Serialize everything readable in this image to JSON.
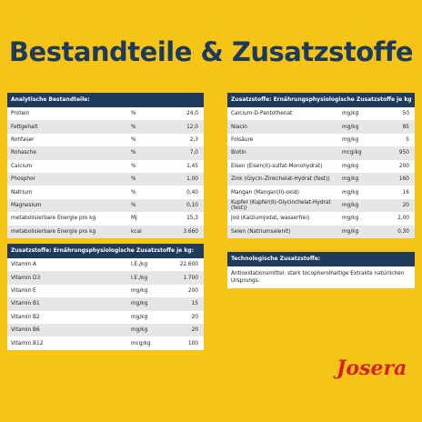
{
  "header": {
    "title": "Bestandteile & Zusatzstoffe"
  },
  "tables": [
    {
      "title": "Analytische Bestandteile:",
      "rows": [
        [
          "Protein",
          "%",
          "24,0"
        ],
        [
          "Fettgehalt",
          "%",
          "12,0"
        ],
        [
          "Rohfaser",
          "%",
          "2,3"
        ],
        [
          "Rohasche",
          "%",
          "7,0"
        ],
        [
          "Calcium",
          "%",
          "1,45"
        ],
        [
          "Phosphor",
          "%",
          "1,00"
        ],
        [
          "Natrium",
          "%",
          "0,40"
        ],
        [
          "Magnesium",
          "%",
          "0,10"
        ],
        [
          "metabolisierbare Energie pro kg",
          "MJ",
          "15,3"
        ],
        [
          "metabolisierbare Energie pro kg",
          "kcal",
          "3.660"
        ]
      ]
    },
    {
      "title": "Zusatzstoffe: Ernährungsphysiologische Zusatzstoffe je kg:",
      "rows": [
        [
          "Vitamin A",
          "I.E./kg",
          "22.600"
        ],
        [
          "Vitamin D3",
          "I.E./kg",
          "1.700"
        ],
        [
          "Vitamin E",
          "mg/kg",
          "200"
        ],
        [
          "Vitamin B1",
          "mg/kg",
          "15"
        ],
        [
          "Vitamin B2",
          "mg/kg",
          "20"
        ],
        [
          "Vitamin B6",
          "mg/kg",
          "20"
        ],
        [
          "Vitamin B12",
          "mcg/kg",
          "100"
        ]
      ]
    },
    {
      "title": "Zusatzstoffe: Ernährungsphysiologische Zusatzstoffe je kg",
      "rows": [
        [
          "Calcium-D-Pantothenat",
          "mg/kg",
          "50"
        ],
        [
          "Niacin",
          "mg/kg",
          "85"
        ],
        [
          "Folsäure",
          "mg/kg",
          "5"
        ],
        [
          "Biotin",
          "mcg/kg",
          "950"
        ],
        [
          "Eisen (Eisen(II)-sulfat-Monohydrat)",
          "mg/kg",
          "200"
        ],
        [
          "Zink (Glycin-Zinkchelat-Hydrat (fest))",
          "mg/kg",
          "160"
        ],
        [
          "Mangan (Mangan(II)-oxid)",
          "mg/kg",
          "16"
        ],
        [
          "Kupfer (Kupfer(II)-Glycinchelat-Hydrat (fest))",
          "mg/kg",
          "20"
        ],
        [
          "Jod (Kalziumjodat, wasserfrei)",
          "mg/kg",
          "2,00"
        ],
        [
          "Selen (Natriumselenit)",
          "mg/kg",
          "0,30"
        ]
      ]
    }
  ],
  "technical": {
    "title": "Technologische Zusatzstoffe:",
    "text": "Antioxidationsmittel: stark tocopherolhaltige Extrakte natürlichen Ursprungs."
  },
  "logo": "Josera"
}
